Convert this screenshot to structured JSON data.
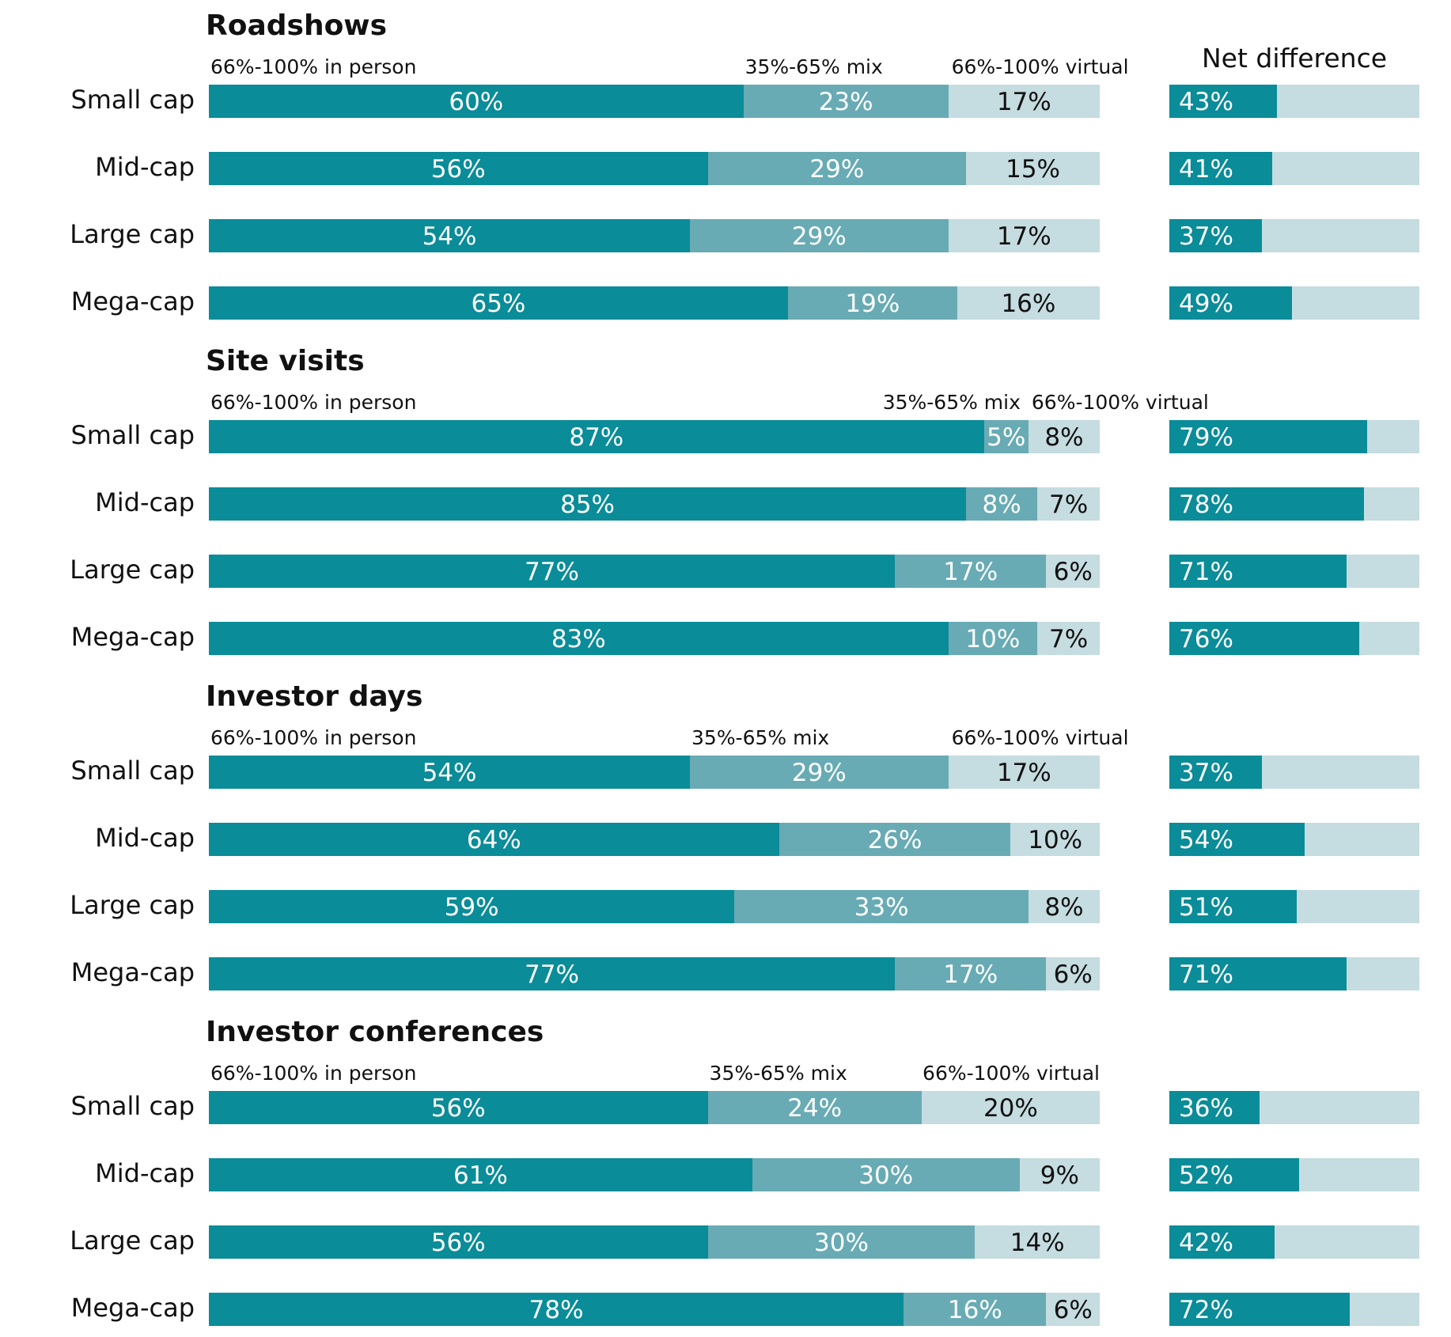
{
  "colors": {
    "in_person": "#0a8c99",
    "mix": "#68abb4",
    "virtual": "#c5dce0",
    "net_fg": "#0a8c99",
    "net_bg": "#c5dce0",
    "label_light": "#ffffff",
    "label_dark": "#111111"
  },
  "chart_data": {
    "type": "bar",
    "orientation": "horizontal",
    "stacked": true,
    "net_difference_title": "Net difference",
    "categories": [
      "Small cap",
      "Mid-cap",
      "Large cap",
      "Mega-cap"
    ],
    "value_unit": "%",
    "xlim": [
      0,
      100
    ],
    "grid": false,
    "sections": [
      {
        "title": "Roadshows",
        "series_labels": [
          "66%-100% in person",
          "35%-65% mix",
          "66%-100% virtual"
        ],
        "rows": [
          {
            "category": "Small cap",
            "in_person": 60,
            "mix": 23,
            "virtual": 17,
            "net": 43
          },
          {
            "category": "Mid-cap",
            "in_person": 56,
            "mix": 29,
            "virtual": 15,
            "net": 41
          },
          {
            "category": "Large cap",
            "in_person": 54,
            "mix": 29,
            "virtual": 17,
            "net": 37
          },
          {
            "category": "Mega-cap",
            "in_person": 65,
            "mix": 19,
            "virtual": 16,
            "net": 49
          }
        ]
      },
      {
        "title": "Site visits",
        "series_labels": [
          "66%-100% in person",
          "35%-65% mix",
          "66%-100% virtual"
        ],
        "rows": [
          {
            "category": "Small cap",
            "in_person": 87,
            "mix": 5,
            "virtual": 8,
            "net": 79
          },
          {
            "category": "Mid-cap",
            "in_person": 85,
            "mix": 8,
            "virtual": 7,
            "net": 78
          },
          {
            "category": "Large cap",
            "in_person": 77,
            "mix": 17,
            "virtual": 6,
            "net": 71
          },
          {
            "category": "Mega-cap",
            "in_person": 83,
            "mix": 10,
            "virtual": 7,
            "net": 76
          }
        ]
      },
      {
        "title": "Investor days",
        "series_labels": [
          "66%-100% in person",
          "35%-65% mix",
          "66%-100% virtual"
        ],
        "rows": [
          {
            "category": "Small cap",
            "in_person": 54,
            "mix": 29,
            "virtual": 17,
            "net": 37
          },
          {
            "category": "Mid-cap",
            "in_person": 64,
            "mix": 26,
            "virtual": 10,
            "net": 54
          },
          {
            "category": "Large cap",
            "in_person": 59,
            "mix": 33,
            "virtual": 8,
            "net": 51
          },
          {
            "category": "Mega-cap",
            "in_person": 77,
            "mix": 17,
            "virtual": 6,
            "net": 71
          }
        ]
      },
      {
        "title": "Investor conferences",
        "series_labels": [
          "66%-100% in person",
          "35%-65% mix",
          "66%-100% virtual"
        ],
        "rows": [
          {
            "category": "Small cap",
            "in_person": 56,
            "mix": 24,
            "virtual": 20,
            "net": 36
          },
          {
            "category": "Mid-cap",
            "in_person": 61,
            "mix": 30,
            "virtual": 9,
            "net": 52
          },
          {
            "category": "Large cap",
            "in_person": 56,
            "mix": 30,
            "virtual": 14,
            "net": 42
          },
          {
            "category": "Mega-cap",
            "in_person": 78,
            "mix": 16,
            "virtual": 6,
            "net": 72
          }
        ]
      }
    ]
  }
}
